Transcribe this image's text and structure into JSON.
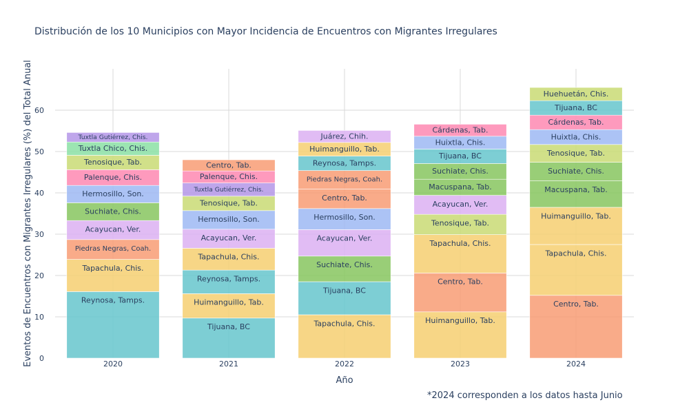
{
  "chart_data": {
    "type": "bar",
    "stacked": true,
    "title": "Distribución de los 10 Municipios con Mayor Incidencia de Encuentros con Migrantes Irregulares",
    "xlabel": "Año",
    "ylabel": "Eventos de Encuentros con Migrantes Irregulares (%) del Total Anual",
    "ylim": [
      0,
      70
    ],
    "yticks": [
      0,
      10,
      20,
      30,
      40,
      50,
      60
    ],
    "grid": true,
    "note": "*2024 corresponden a los datos hasta Junio",
    "categories": [
      "2020",
      "2021",
      "2022",
      "2023",
      "2024"
    ],
    "colors": {
      "Reynosa, Tamps.": "#66c5cc",
      "Tijuana, BC": "#66c5cc",
      "Tapachula, Chis.": "#f6cf71",
      "Huimanguillo, Tab.": "#f6cf71",
      "Piedras Negras, Coah.": "#f89c74",
      "Centro, Tab.": "#f89c74",
      "Acayucan, Ver.": "#dcb0f2",
      "Juárez, Chih.": "#dcb0f2",
      "Suchiate, Chis.": "#87c55f",
      "Macuspana, Tab.": "#87c55f",
      "Hermosillo, Son.": "#9eb9f3",
      "Huixtla, Chis.": "#9eb9f3",
      "Palenque, Chis.": "#fe88b1",
      "Cárdenas, Tab.": "#fe88b1",
      "Tenosique, Tab.": "#c9db74",
      "Huehuetán, Chis.": "#c9db74",
      "Tuxtla Chico, Chis.": "#8be0a4",
      "Tuxtla Gutiérrez, Chis.": "#b497e7"
    },
    "stacks": [
      {
        "year": "2020",
        "segments": [
          {
            "name": "Reynosa, Tamps.",
            "value": 16.1
          },
          {
            "name": "Tapachula, Chis.",
            "value": 7.8
          },
          {
            "name": "Piedras Negras, Coah.",
            "value": 4.8
          },
          {
            "name": "Acayucan, Ver.",
            "value": 4.6
          },
          {
            "name": "Suchiate, Chis.",
            "value": 4.3
          },
          {
            "name": "Hermosillo, Son.",
            "value": 4.2
          },
          {
            "name": "Palenque, Chis.",
            "value": 3.8
          },
          {
            "name": "Tenosique, Tab.",
            "value": 3.5
          },
          {
            "name": "Tuxtla Chico, Chis.",
            "value": 3.2
          },
          {
            "name": "Tuxtla Gutiérrez, Chis.",
            "value": 2.3
          }
        ]
      },
      {
        "year": "2021",
        "segments": [
          {
            "name": "Tijuana, BC",
            "value": 9.7
          },
          {
            "name": "Huimanguillo, Tab.",
            "value": 5.9
          },
          {
            "name": "Reynosa, Tamps.",
            "value": 5.7
          },
          {
            "name": "Tapachula, Chis.",
            "value": 5.3
          },
          {
            "name": "Acayucan, Ver.",
            "value": 4.6
          },
          {
            "name": "Hermosillo, Son.",
            "value": 4.5
          },
          {
            "name": "Tenosique, Tab.",
            "value": 3.5
          },
          {
            "name": "Tuxtla Gutiérrez, Chis.",
            "value": 3.2
          },
          {
            "name": "Palenque, Chis.",
            "value": 2.9
          },
          {
            "name": "Centro, Tab.",
            "value": 2.7
          }
        ]
      },
      {
        "year": "2022",
        "segments": [
          {
            "name": "Tapachula, Chis.",
            "value": 10.5
          },
          {
            "name": "Tijuana, BC",
            "value": 8.0
          },
          {
            "name": "Suchiate, Chis.",
            "value": 6.2
          },
          {
            "name": "Acayucan, Ver.",
            "value": 6.4
          },
          {
            "name": "Hermosillo, Son.",
            "value": 5.1
          },
          {
            "name": "Centro, Tab.",
            "value": 4.7
          },
          {
            "name": "Piedras Negras, Coah.",
            "value": 4.5
          },
          {
            "name": "Reynosa, Tamps.",
            "value": 3.5
          },
          {
            "name": "Huimanguillo, Tab.",
            "value": 3.3
          },
          {
            "name": "Juárez, Chih.",
            "value": 2.9
          }
        ]
      },
      {
        "year": "2023",
        "segments": [
          {
            "name": "Huimanguillo, Tab.",
            "value": 11.2
          },
          {
            "name": "Centro, Tab.",
            "value": 9.4
          },
          {
            "name": "Tapachula, Chis.",
            "value": 9.3
          },
          {
            "name": "Tenosique, Tab.",
            "value": 4.9
          },
          {
            "name": "Acayucan, Ver.",
            "value": 4.6
          },
          {
            "name": "Macuspana, Tab.",
            "value": 3.9
          },
          {
            "name": "Suchiate, Chis.",
            "value": 3.8
          },
          {
            "name": "Tijuana, BC",
            "value": 3.5
          },
          {
            "name": "Huixtla, Chis.",
            "value": 3.1
          },
          {
            "name": "Cárdenas, Tab.",
            "value": 2.9
          }
        ]
      },
      {
        "year": "2024",
        "segments": [
          {
            "name": "Centro, Tab.",
            "value": 15.2
          },
          {
            "name": "Tapachula, Chis.",
            "value": 12.3
          },
          {
            "name": "Huimanguillo, Tab.",
            "value": 9.0
          },
          {
            "name": "Macuspana, Tab.",
            "value": 6.4
          },
          {
            "name": "Suchiate, Chis.",
            "value": 4.5
          },
          {
            "name": "Tenosique, Tab.",
            "value": 4.3
          },
          {
            "name": "Huixtla, Chis.",
            "value": 3.6
          },
          {
            "name": "Cárdenas, Tab.",
            "value": 3.5
          },
          {
            "name": "Tijuana, BC",
            "value": 3.5
          },
          {
            "name": "Huehuetán, Chis.",
            "value": 3.2
          }
        ]
      }
    ]
  }
}
